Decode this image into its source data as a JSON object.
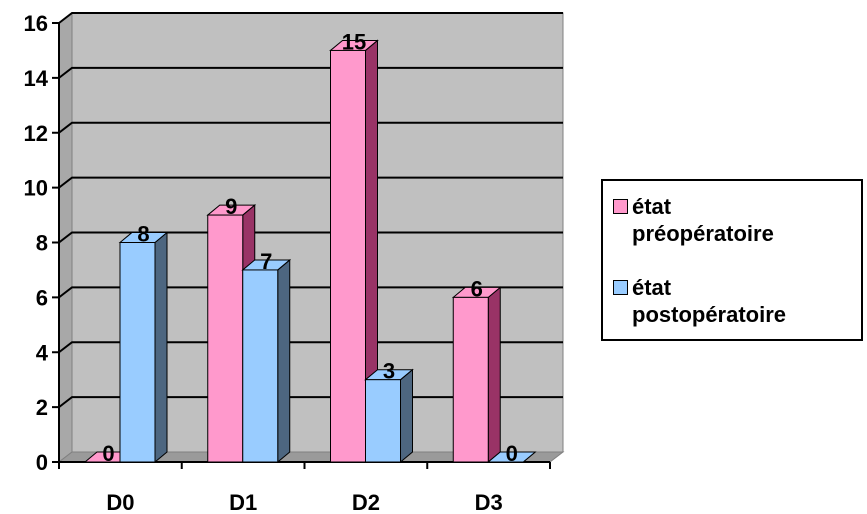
{
  "chart_data": {
    "type": "bar",
    "categories": [
      "D0",
      "D1",
      "D2",
      "D3"
    ],
    "series": [
      {
        "name": "état préopératoire",
        "values": [
          0,
          9,
          15,
          6
        ],
        "color": "#FF99CC",
        "side_color": "#993366"
      },
      {
        "name": "état postopératoire",
        "values": [
          8,
          7,
          3,
          0
        ],
        "color": "#99CCFF",
        "side_color": "#4D6680"
      }
    ],
    "ylim": [
      0,
      16
    ],
    "y_ticks": [
      "0",
      "2",
      "4",
      "6",
      "8",
      "10",
      "12",
      "14",
      "16"
    ],
    "grid": true,
    "plot_background": "#C0C0C0",
    "legend_position": "right",
    "style": "3d-clustered-column",
    "data_labels": true
  },
  "legend": {
    "items": [
      {
        "line1": "état",
        "line2": "préopératoire"
      },
      {
        "line1": "état",
        "line2": "postopératoire"
      }
    ]
  }
}
